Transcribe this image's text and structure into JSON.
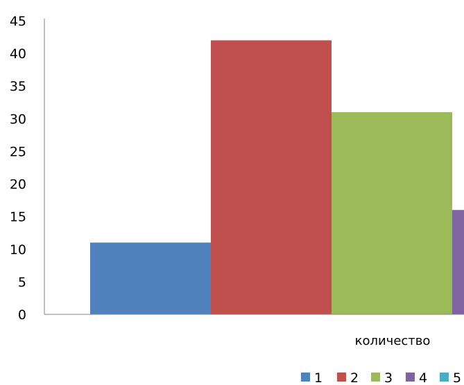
{
  "chart_data": {
    "type": "bar",
    "categories": [
      "количество"
    ],
    "series": [
      {
        "name": "1",
        "values": [
          11
        ],
        "color": "#4F81BD"
      },
      {
        "name": "2",
        "values": [
          42
        ],
        "color": "#C0504D"
      },
      {
        "name": "3",
        "values": [
          31
        ],
        "color": "#9BBB59"
      },
      {
        "name": "4",
        "values": [
          16
        ],
        "color": "#8064A2"
      },
      {
        "name": "5",
        "values": [
          null
        ],
        "color": "#4BACC6"
      }
    ],
    "yticks": [
      "0",
      "5",
      "10",
      "15",
      "20",
      "25",
      "30",
      "35",
      "40",
      "45"
    ],
    "ylim": [
      0,
      45
    ],
    "grid": false,
    "legend_position": "bottom"
  }
}
